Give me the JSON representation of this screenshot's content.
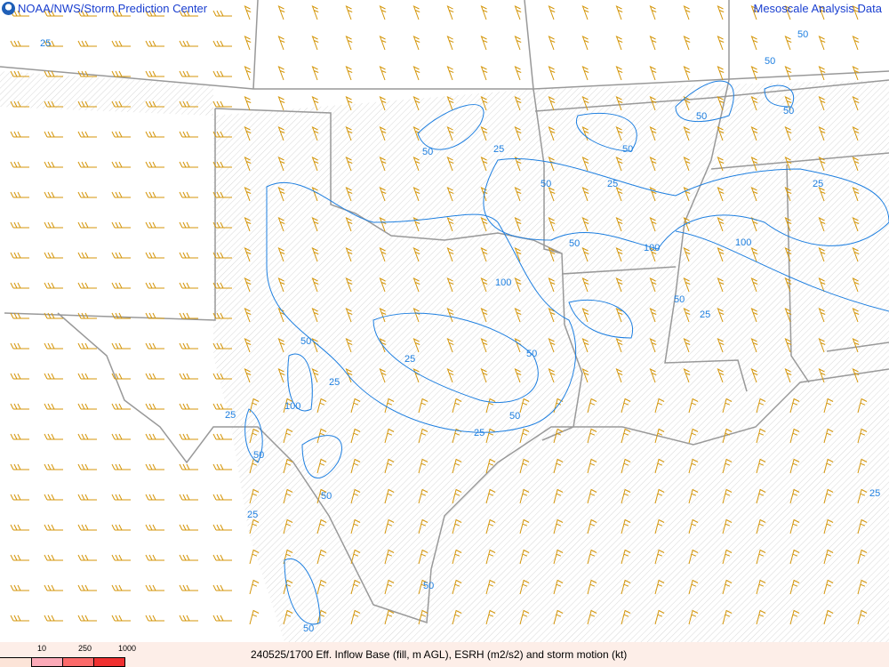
{
  "header": {
    "left_title": "NOAA/NWS/Storm Prediction Center",
    "right_title": "Mesoscale Analysis Data",
    "logo": "noaa-logo"
  },
  "footer": {
    "caption": "240525/1700 Eff. Inflow Base (fill, m AGL), ESRH (m2/s2) and storm motion (kt)"
  },
  "legend": {
    "ticks": [
      "10",
      "250",
      "1000"
    ],
    "colors": [
      "#fce4d8",
      "#fcaab8",
      "#fc6a6a",
      "#f03030"
    ]
  },
  "colors": {
    "contour": "#1e7fe0",
    "barbs": "#d4960a",
    "borders": "#999999",
    "hatch": "#dddddd"
  },
  "contour_labels": [
    "25",
    "50",
    "50",
    "50",
    "25",
    "50",
    "50",
    "50",
    "50",
    "25",
    "25",
    "50",
    "100",
    "100",
    "100",
    "50",
    "25",
    "50",
    "25",
    "50",
    "25",
    "100",
    "25",
    "50",
    "25",
    "50",
    "50",
    "25",
    "25",
    "50",
    "50"
  ]
}
